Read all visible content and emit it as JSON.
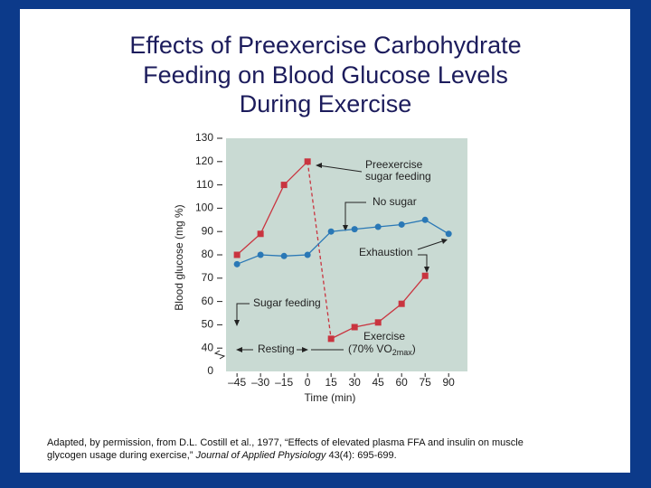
{
  "title": [
    "Effects of Preexercise Carbohydrate",
    "Feeding on Blood Glucose Levels",
    "During Exercise"
  ],
  "chart_data": {
    "type": "line",
    "x_label": "Time (min)",
    "y_label": "Blood glucose (mg %)",
    "xlim": [
      -52,
      102
    ],
    "ylim": [
      30,
      130
    ],
    "xticks": [
      {
        "value": -45,
        "label": "–45"
      },
      {
        "value": -30,
        "label": "–30"
      },
      {
        "value": -15,
        "label": "–15"
      },
      0,
      15,
      30,
      45,
      60,
      75,
      90
    ],
    "yticks": [
      40,
      50,
      60,
      70,
      80,
      90,
      100,
      110,
      120,
      130
    ],
    "y_origin_label": "0",
    "x": [
      -45,
      -30,
      -15,
      0,
      15,
      30,
      45,
      60,
      75,
      90
    ],
    "series": [
      {
        "marker": "square",
        "color": "#c9343f",
        "values": [
          80,
          89,
          110,
          120,
          44,
          49,
          51,
          59,
          71,
          null
        ]
      },
      {
        "marker": "circle",
        "color": "#2a78b6",
        "values": [
          76,
          80,
          79.5,
          80,
          90,
          91,
          92,
          93,
          95,
          89
        ]
      }
    ],
    "annotations": {
      "preexercise": [
        "Preexercise",
        "sugar feeding"
      ],
      "no_sugar": "No sugar",
      "exhaustion": "Exhaustion",
      "sugar_feeding": "Sugar feeding",
      "resting": "Resting",
      "exercise": "Exercise",
      "intensity": [
        "(70% VO",
        "2max",
        ")"
      ]
    }
  },
  "caption": {
    "line1": "Adapted, by permission, from D.L. Costill et al., 1977, “Effects of elevated plasma FFA and insulin on muscle",
    "line2_start": "glycogen usage during exercise,” ",
    "journal": "Journal of Applied Physiology",
    "line2_end": " 43(4): 695-699."
  }
}
